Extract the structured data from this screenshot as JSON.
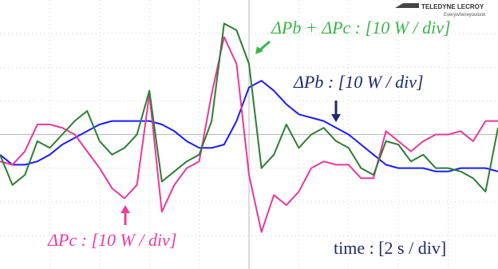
{
  "chart_data": {
    "type": "line",
    "x": [
      0,
      0.25,
      0.5,
      0.75,
      1,
      1.25,
      1.5,
      1.75,
      2,
      2.25,
      2.5,
      2.75,
      3,
      3.25,
      3.5,
      3.75,
      4,
      4.25,
      4.5,
      4.75,
      5,
      5.25,
      5.5,
      5.75,
      6,
      6.25,
      6.5,
      6.75,
      7,
      7.25,
      7.5,
      7.75,
      8,
      8.25,
      8.5,
      8.75,
      9,
      9.25,
      9.5,
      9.75,
      10
    ],
    "xlim": [
      0,
      10
    ],
    "ylim": [
      -4,
      4
    ],
    "series": [
      {
        "name": "ΔPb : [10 W / div]",
        "color": "#1a1aff",
        "values": [
          -0.6,
          -0.9,
          -0.9,
          -0.8,
          -0.6,
          -0.3,
          -0.1,
          0.1,
          0.3,
          0.4,
          0.4,
          0.4,
          0.4,
          0.3,
          0.1,
          -0.2,
          -0.4,
          -0.4,
          -0.3,
          0.4,
          1.4,
          1.6,
          1.3,
          0.9,
          0.6,
          0.5,
          0.4,
          0.2,
          0,
          -0.3,
          -0.6,
          -0.9,
          -1.0,
          -1.0,
          -1.0,
          -1.1,
          -1.1,
          -1.0,
          -1.0,
          -1.0,
          -1.1
        ]
      },
      {
        "name": "ΔPc : [10 W / div]",
        "color": "#e8399a",
        "values": [
          -0.8,
          -0.9,
          -0.5,
          0.3,
          0.3,
          0.2,
          0,
          -0.5,
          -1.0,
          -1.6,
          -1.9,
          -1.5,
          1.2,
          -2.3,
          -1.5,
          -1.0,
          -0.8,
          1.2,
          2.9,
          2.1,
          -1.2,
          -2.9,
          -1.8,
          -2.1,
          -1.7,
          -1.0,
          -0.8,
          -0.9,
          -0.9,
          -1.3,
          -1.3,
          0.1,
          -0.2,
          -0.5,
          -0.2,
          0,
          0,
          0.1,
          -0.2,
          0.4,
          0.4
        ]
      },
      {
        "name": "ΔPb + ΔPc : [10 W / div]",
        "color": "#2e7d32",
        "values": [
          -0.6,
          -1.5,
          -1.2,
          -0.2,
          -0.4,
          0,
          0.4,
          0.7,
          -0.2,
          -0.6,
          -0.4,
          0,
          1.3,
          -1.4,
          -1.1,
          -0.8,
          -0.6,
          0.4,
          3.3,
          3.1,
          2.1,
          -1.0,
          -0.6,
          0.3,
          -0.4,
          0,
          0.2,
          -0.2,
          -0.4,
          -1.0,
          -1.2,
          -0.2,
          -0.3,
          -0.8,
          -0.6,
          -1.0,
          -1.0,
          -1.1,
          -1.3,
          -1.7,
          0.2
        ]
      }
    ],
    "annotation": "time : [2 s / div]",
    "brand": "TELEDYNE LECROY",
    "slogan": "Everywhereyoulook"
  }
}
